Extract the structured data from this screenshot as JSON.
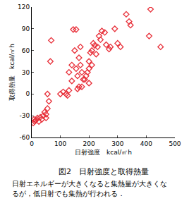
{
  "chart_data": {
    "type": "scatter",
    "title": "図2　日射強度と取得熱量",
    "annotations": [
      "日射エネルギーが大きくなると集熱量が大きくな",
      "るが，低日射でも集熱が行われる．"
    ],
    "x_label": "日射強度　kcal/㎡h",
    "y_label": "取得熱量　kcal/㎡h",
    "x": [
      5,
      8,
      10,
      15,
      20,
      25,
      30,
      35,
      40,
      45,
      50,
      50,
      55,
      60,
      55,
      65,
      68,
      100,
      110,
      120,
      125,
      130,
      130,
      140,
      140,
      145,
      150,
      155,
      155,
      160,
      160,
      165,
      165,
      170,
      170,
      175,
      175,
      180,
      185,
      190,
      195,
      200,
      200,
      200,
      205,
      210,
      210,
      215,
      220,
      225,
      230,
      235,
      240,
      245,
      255,
      260,
      270,
      275,
      290,
      300,
      310,
      330,
      340,
      345,
      410,
      415,
      450
    ],
    "values": [
      -40,
      -35,
      -38,
      -36,
      -33,
      -38,
      -32,
      -35,
      -30,
      -25,
      -28,
      -33,
      -20,
      -10,
      0,
      45,
      74,
      0,
      3,
      0,
      -2,
      30,
      5,
      18,
      40,
      89,
      60,
      89,
      35,
      25,
      7,
      10,
      50,
      65,
      40,
      30,
      10,
      20,
      20,
      25,
      30,
      35,
      45,
      15,
      57,
      60,
      40,
      70,
      67,
      55,
      65,
      80,
      75,
      87,
      85,
      68,
      62,
      65,
      90,
      70,
      65,
      110,
      100,
      95,
      80,
      117,
      65
    ],
    "color": "#e8303a",
    "marker": "diamond-open",
    "xlim": [
      0,
      500
    ],
    "xticks": [
      0,
      100,
      200,
      300,
      400,
      500
    ],
    "ylim": [
      -60,
      120
    ],
    "yticks": [
      -60,
      -30,
      0,
      30,
      60,
      90,
      120
    ],
    "grid": false
  }
}
